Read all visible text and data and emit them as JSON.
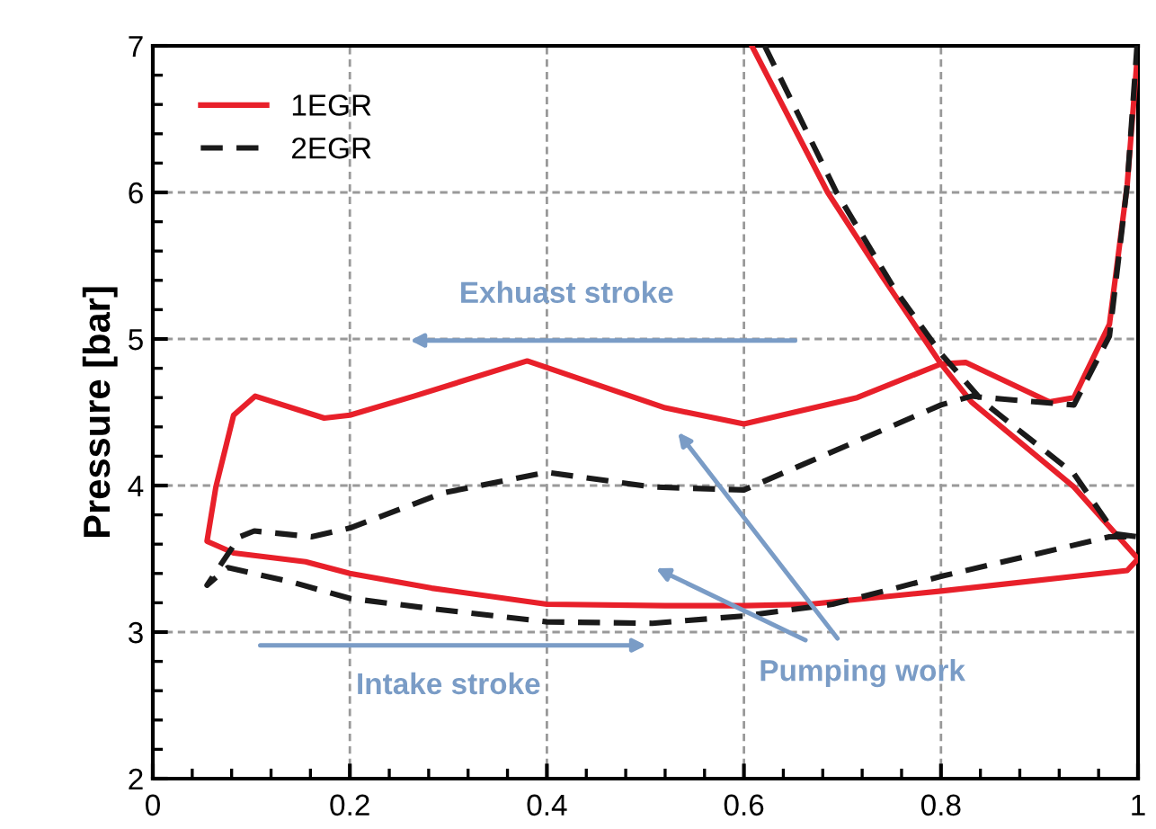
{
  "chart_data": {
    "type": "line",
    "ylabel": "Pressure [bar]",
    "xlim": [
      0,
      1
    ],
    "ylim": [
      2,
      7
    ],
    "xticks": [
      0,
      0.2,
      0.4,
      0.6,
      0.8,
      1
    ],
    "yticks": [
      2,
      3,
      4,
      5,
      6,
      7
    ],
    "grid": true,
    "legend": "top left",
    "marker": "none",
    "series": [
      {
        "name": "1EGR",
        "color": "#e8202a",
        "line_style": "solid",
        "x": [
          0.608,
          0.685,
          0.74,
          0.8,
          0.831,
          0.935,
          1.0,
          0.989,
          0.8,
          0.667,
          0.6,
          0.52,
          0.4,
          0.283,
          0.2,
          0.155,
          0.082,
          0.055,
          0.064,
          0.082,
          0.104,
          0.174,
          0.2,
          0.265,
          0.38,
          0.52,
          0.6,
          0.715,
          0.8,
          0.825,
          0.91,
          0.935,
          0.971,
          0.989,
          1.0
        ],
        "values": [
          7.0,
          6.0,
          5.43,
          4.83,
          4.57,
          3.99,
          3.5,
          3.42,
          3.28,
          3.19,
          3.18,
          3.18,
          3.19,
          3.3,
          3.4,
          3.48,
          3.54,
          3.62,
          3.99,
          4.48,
          4.61,
          4.46,
          4.48,
          4.61,
          4.85,
          4.53,
          4.42,
          4.6,
          4.83,
          4.84,
          4.57,
          4.6,
          5.1,
          6.05,
          6.99
        ]
      },
      {
        "name": "2EGR",
        "color": "#1a1a1a",
        "line_style": "dashed",
        "x": [
          0.621,
          0.694,
          0.752,
          0.8,
          0.843,
          0.935,
          0.977,
          1.0,
          0.971,
          0.8,
          0.69,
          0.6,
          0.507,
          0.4,
          0.283,
          0.2,
          0.142,
          0.076,
          0.055,
          0.088,
          0.103,
          0.161,
          0.2,
          0.295,
          0.4,
          0.507,
          0.6,
          0.8,
          0.831,
          0.862,
          0.935,
          0.971,
          0.989,
          0.999
        ],
        "values": [
          7.0,
          6.0,
          5.35,
          4.9,
          4.57,
          4.08,
          3.67,
          3.65,
          3.65,
          3.38,
          3.19,
          3.11,
          3.06,
          3.07,
          3.16,
          3.23,
          3.34,
          3.44,
          3.32,
          3.65,
          3.69,
          3.65,
          3.71,
          3.95,
          4.09,
          3.99,
          3.97,
          4.55,
          4.61,
          4.59,
          4.55,
          5.02,
          6.05,
          7.0
        ]
      }
    ],
    "annotations": [
      "Exhuast stroke",
      "Intake stroke",
      "Pumping work"
    ]
  }
}
